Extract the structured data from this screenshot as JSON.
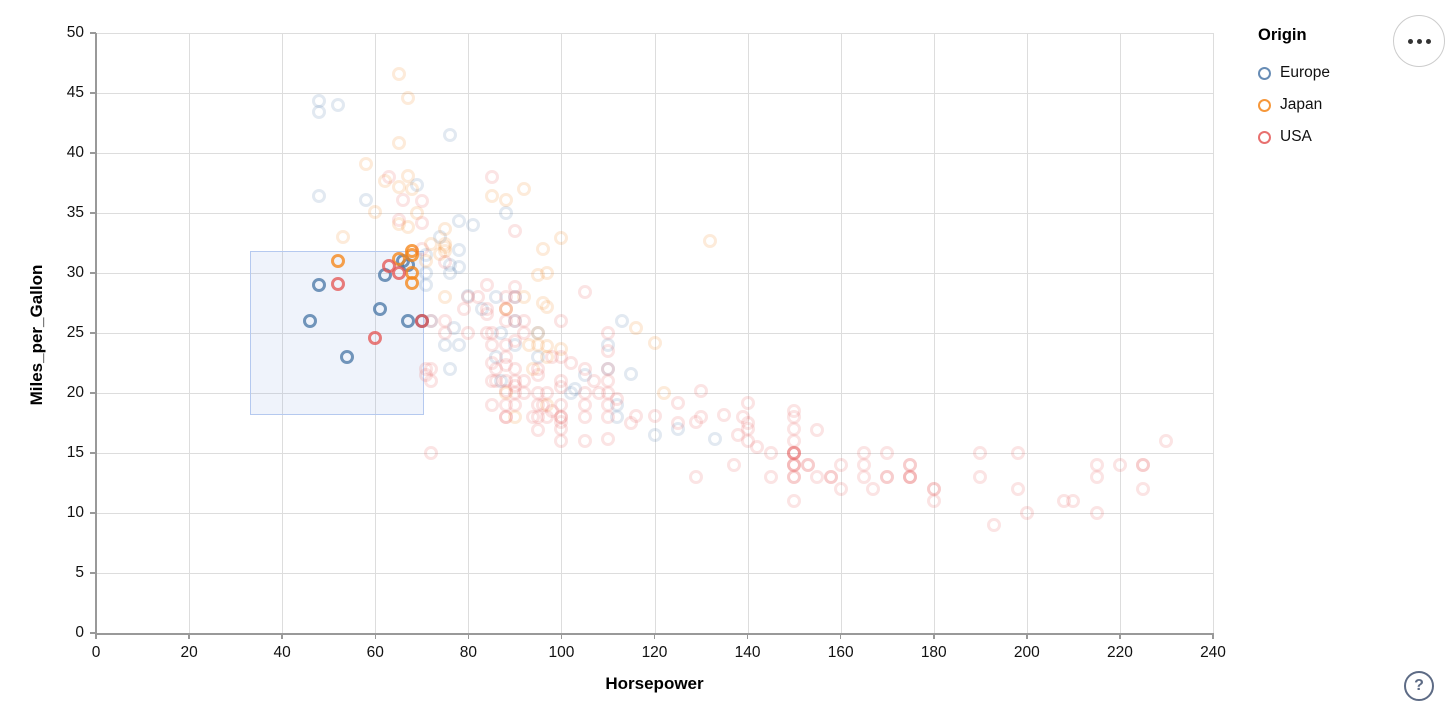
{
  "chart_data": {
    "type": "scatter",
    "title": "",
    "xlabel": "Horsepower",
    "ylabel": "Miles_per_Gallon",
    "xlim": [
      0,
      240
    ],
    "ylim": [
      0,
      50
    ],
    "x_ticks": [
      0,
      20,
      40,
      60,
      80,
      100,
      120,
      140,
      160,
      180,
      200,
      220,
      240
    ],
    "y_ticks": [
      0,
      5,
      10,
      15,
      20,
      25,
      30,
      35,
      40,
      45,
      50
    ],
    "grid": true,
    "legend": {
      "title": "Origin",
      "position": "top-right",
      "items": [
        {
          "label": "Europe",
          "color": "#4c78a8"
        },
        {
          "label": "Japan",
          "color": "#f58518"
        },
        {
          "label": "USA",
          "color": "#e45756"
        }
      ]
    },
    "brush": {
      "x": [
        33,
        70.5
      ],
      "y": [
        18.2,
        31.8
      ]
    },
    "selected_opacity": 0.78,
    "unselected_opacity": 0.16,
    "series": [
      {
        "name": "Europe",
        "color": "#4c78a8",
        "points": [
          [
            46,
            26
          ],
          [
            48,
            29
          ],
          [
            54,
            23
          ],
          [
            61,
            27
          ],
          [
            67,
            26
          ],
          [
            70,
            26
          ],
          [
            62,
            29.8
          ],
          [
            67,
            30.7
          ],
          [
            66,
            31
          ],
          [
            48,
            44.3
          ],
          [
            52,
            44
          ],
          [
            48,
            43.4
          ],
          [
            76,
            41.5
          ],
          [
            69,
            37.3
          ],
          [
            48,
            36.4
          ],
          [
            58,
            36.1
          ],
          [
            88,
            35
          ],
          [
            78,
            34.3
          ],
          [
            81,
            34
          ],
          [
            74,
            33
          ],
          [
            71,
            31.5
          ],
          [
            78,
            31.9
          ],
          [
            76,
            30.7
          ],
          [
            71,
            29
          ],
          [
            80,
            28.1
          ],
          [
            90,
            28
          ],
          [
            86,
            28
          ],
          [
            78,
            30.5
          ],
          [
            71,
            30
          ],
          [
            76,
            30
          ],
          [
            83,
            27
          ],
          [
            72,
            26
          ],
          [
            90,
            26
          ],
          [
            87,
            25
          ],
          [
            77,
            25.4
          ],
          [
            95,
            25
          ],
          [
            90,
            24
          ],
          [
            75,
            24
          ],
          [
            78,
            24
          ],
          [
            110,
            24
          ],
          [
            86,
            23
          ],
          [
            95,
            23
          ],
          [
            113,
            26
          ],
          [
            102,
            20
          ],
          [
            103,
            20.3
          ],
          [
            105,
            21.5
          ],
          [
            115,
            21.6
          ],
          [
            112,
            18
          ],
          [
            112,
            19
          ],
          [
            87,
            21
          ],
          [
            76,
            22
          ],
          [
            110,
            22
          ],
          [
            125,
            17
          ],
          [
            120,
            16.5
          ],
          [
            133,
            16.2
          ]
        ]
      },
      {
        "name": "Japan",
        "color": "#f58518",
        "points": [
          [
            52,
            31
          ],
          [
            65,
            31.2
          ],
          [
            68,
            31.5
          ],
          [
            68,
            31.8
          ],
          [
            68,
            30
          ],
          [
            68,
            29.2
          ],
          [
            65,
            46.6
          ],
          [
            67,
            44.6
          ],
          [
            65,
            40.8
          ],
          [
            58,
            39.1
          ],
          [
            67,
            38.1
          ],
          [
            62,
            37.7
          ],
          [
            65,
            37.2
          ],
          [
            68,
            37
          ],
          [
            92,
            37
          ],
          [
            85,
            36.4
          ],
          [
            88,
            36.1
          ],
          [
            60,
            35.1
          ],
          [
            69,
            35
          ],
          [
            65,
            34.1
          ],
          [
            67,
            33.8
          ],
          [
            53,
            33
          ],
          [
            100,
            32.9
          ],
          [
            132,
            32.7
          ],
          [
            96,
            32
          ],
          [
            75,
            32.4
          ],
          [
            75,
            32.2
          ],
          [
            72,
            32.4
          ],
          [
            75,
            33.7
          ],
          [
            75,
            31.8
          ],
          [
            74,
            31.6
          ],
          [
            71,
            31
          ],
          [
            95,
            29.8
          ],
          [
            97,
            30
          ],
          [
            92,
            28
          ],
          [
            88,
            27
          ],
          [
            88,
            27
          ],
          [
            75,
            28
          ],
          [
            97,
            27.2
          ],
          [
            96,
            27.5
          ],
          [
            95,
            25
          ],
          [
            95,
            24
          ],
          [
            93,
            24
          ],
          [
            97,
            23
          ],
          [
            94,
            22
          ],
          [
            122,
            20
          ],
          [
            120,
            24.2
          ],
          [
            116,
            25.4
          ],
          [
            100,
            23.7
          ],
          [
            97,
            23.9
          ],
          [
            90,
            18
          ],
          [
            97,
            19
          ],
          [
            88,
            20
          ]
        ]
      },
      {
        "name": "USA",
        "color": "#e45756",
        "points": [
          [
            52,
            29.1
          ],
          [
            60,
            24.6
          ],
          [
            63,
            30.6
          ],
          [
            65,
            30
          ],
          [
            130,
            18
          ],
          [
            165,
            15
          ],
          [
            150,
            18
          ],
          [
            150,
            16
          ],
          [
            140,
            17
          ],
          [
            198,
            15
          ],
          [
            220,
            14
          ],
          [
            215,
            14
          ],
          [
            225,
            14
          ],
          [
            190,
            15
          ],
          [
            170,
            15
          ],
          [
            160,
            14
          ],
          [
            150,
            15
          ],
          [
            225,
            14
          ],
          [
            215,
            10
          ],
          [
            200,
            10
          ],
          [
            210,
            11
          ],
          [
            193,
            9
          ],
          [
            165,
            14
          ],
          [
            175,
            14
          ],
          [
            153,
            14
          ],
          [
            175,
            14
          ],
          [
            180,
            12
          ],
          [
            170,
            13
          ],
          [
            175,
            13
          ],
          [
            165,
            13
          ],
          [
            150,
            15
          ],
          [
            153,
            14
          ],
          [
            150,
            17
          ],
          [
            208,
            11
          ],
          [
            155,
            13
          ],
          [
            160,
            12
          ],
          [
            190,
            13
          ],
          [
            150,
            15
          ],
          [
            150,
            13
          ],
          [
            158,
            13
          ],
          [
            150,
            14
          ],
          [
            175,
            13
          ],
          [
            150,
            14
          ],
          [
            145,
            13
          ],
          [
            137,
            14
          ],
          [
            150,
            15
          ],
          [
            198,
            12
          ],
          [
            150,
            13
          ],
          [
            158,
            13
          ],
          [
            150,
            14
          ],
          [
            215,
            13
          ],
          [
            225,
            12
          ],
          [
            175,
            13
          ],
          [
            150,
            11
          ],
          [
            167,
            12
          ],
          [
            170,
            13
          ],
          [
            180,
            12
          ],
          [
            145,
            15
          ],
          [
            230,
            16
          ],
          [
            150,
            15
          ],
          [
            180,
            11
          ],
          [
            140,
            16
          ],
          [
            142,
            15.5
          ],
          [
            155,
            16.9
          ],
          [
            138,
            16.5
          ],
          [
            135,
            18.2
          ],
          [
            129,
            17.6
          ],
          [
            140,
            17.5
          ],
          [
            150,
            18.5
          ],
          [
            139,
            18
          ],
          [
            125,
            19.2
          ],
          [
            129,
            13
          ],
          [
            95,
            22
          ],
          [
            97,
            18
          ],
          [
            85,
            21
          ],
          [
            90,
            21
          ],
          [
            105,
            16
          ],
          [
            100,
            17
          ],
          [
            88,
            19
          ],
          [
            100,
            18
          ],
          [
            110,
            18
          ],
          [
            100,
            19
          ],
          [
            88,
            18
          ],
          [
            90,
            20
          ],
          [
            86,
            21
          ],
          [
            86,
            22
          ],
          [
            105,
            18
          ],
          [
            100,
            16
          ],
          [
            100,
            18
          ],
          [
            88,
            18
          ],
          [
            100,
            23
          ],
          [
            85,
            19
          ],
          [
            110,
            21
          ],
          [
            105,
            20
          ],
          [
            95,
            20
          ],
          [
            92,
            21
          ],
          [
            97,
            20
          ],
          [
            90,
            19
          ],
          [
            95,
            18
          ],
          [
            88,
            21
          ],
          [
            110,
            19
          ],
          [
            115,
            17.5
          ],
          [
            112,
            19.5
          ],
          [
            110,
            20
          ],
          [
            105,
            19
          ],
          [
            108,
            20
          ],
          [
            102,
            22.5
          ],
          [
            88,
            22.3
          ],
          [
            88,
            20.2
          ],
          [
            90,
            20.6
          ],
          [
            100,
            20.5
          ],
          [
            105,
            22
          ],
          [
            90,
            24.3
          ],
          [
            90,
            28
          ],
          [
            90,
            28.8
          ],
          [
            90,
            33.5
          ],
          [
            85,
            38
          ],
          [
            84,
            29
          ],
          [
            92,
            26
          ],
          [
            88,
            28
          ],
          [
            88,
            27
          ],
          [
            85,
            25
          ],
          [
            84,
            26.6
          ],
          [
            90,
            26
          ],
          [
            88,
            24
          ],
          [
            85,
            24
          ],
          [
            88,
            23
          ],
          [
            110,
            23.5
          ],
          [
            110,
            25
          ],
          [
            105,
            28.4
          ],
          [
            95,
            21.5
          ],
          [
            92,
            25
          ],
          [
            95,
            19
          ],
          [
            100,
            21
          ],
          [
            98,
            18.5
          ],
          [
            95,
            16.9
          ],
          [
            100,
            17.6
          ],
          [
            110,
            16.2
          ],
          [
            107,
            21
          ],
          [
            130,
            20.2
          ],
          [
            140,
            19.2
          ],
          [
            120,
            18.1
          ],
          [
            116,
            18.1
          ],
          [
            125,
            17.5
          ],
          [
            110,
            22
          ],
          [
            90,
            22
          ],
          [
            85,
            22.5
          ],
          [
            92,
            20
          ],
          [
            94,
            18
          ],
          [
            96,
            19
          ],
          [
            98,
            23
          ],
          [
            100,
            26
          ],
          [
            88,
            26
          ],
          [
            84,
            25
          ],
          [
            75,
            25
          ],
          [
            70,
            26
          ],
          [
            72,
            22
          ],
          [
            72,
            21
          ],
          [
            80,
            25
          ],
          [
            80,
            28
          ],
          [
            84,
            27
          ],
          [
            75,
            30.9
          ],
          [
            70,
            34.2
          ],
          [
            66,
            36.1
          ],
          [
            70,
            36
          ],
          [
            63,
            38
          ],
          [
            65,
            34.4
          ],
          [
            70,
            32
          ],
          [
            72,
            15
          ],
          [
            71,
            21.5
          ],
          [
            71,
            22
          ],
          [
            75,
            26
          ],
          [
            79,
            27
          ],
          [
            82,
            28
          ],
          [
            72,
            26
          ]
        ]
      }
    ]
  },
  "controls": {
    "actions_menu_tooltip": "•••",
    "help_label": "?"
  }
}
